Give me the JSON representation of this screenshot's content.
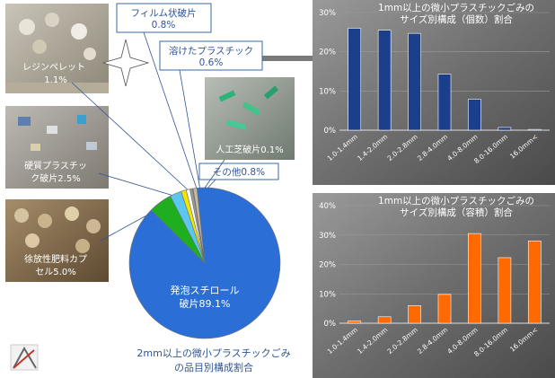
{
  "pie": {
    "caption_line1": "2mm以上の微小プラスチックごみ",
    "caption_line2": "の品目別構成割合",
    "slices": [
      {
        "name_line1": "発泡スチロール",
        "name_line2": "破片89.1%",
        "value": 89.1,
        "color": "#2b6fd6"
      },
      {
        "name_line1": "徐放性肥料カプ",
        "name_line2": "セル5.0%",
        "value": 5.0,
        "color": "#1fae1f"
      },
      {
        "name_line1": "硬質プラスチッ",
        "name_line2": "ク破片2.5%",
        "value": 2.5,
        "color": "#5cc5f0"
      },
      {
        "name_line1": "レジンペレット",
        "name_line2": "1.1%",
        "value": 1.1,
        "color": "#f2e600"
      },
      {
        "name_line1": "フィルム状破片",
        "name_line2": "0.8%",
        "value": 0.8,
        "color": "#ffffff"
      },
      {
        "name_line1": "溶けたプラスチック",
        "name_line2": "0.6%",
        "value": 0.6,
        "color": "#9a9a9a"
      },
      {
        "name_line1": "人工芝破片0.1%",
        "name_line2": "",
        "value": 0.1,
        "color": "#3a8f3a"
      },
      {
        "name_line1": "その他0.8%",
        "name_line2": "",
        "value": 0.8,
        "color": "#c8b89a"
      }
    ]
  },
  "chart_data": [
    {
      "type": "bar",
      "title_line1": "1mm以上の微小プラスチックごみの",
      "title_line2": "サイズ別構成（個数）割合",
      "categories": [
        "1.0-1.4mm",
        "1.4-2.0mm",
        "2.0-2.8mm",
        "2.8-4.0mm",
        "4.0-8.0mm",
        "8.0-16.0mm",
        "16.0mm<"
      ],
      "values": [
        26,
        25.5,
        24.7,
        14.3,
        7.9,
        0.7,
        0.2
      ],
      "yticks": [
        "0%",
        "10%",
        "20%",
        "30%"
      ],
      "ylim": [
        0,
        30
      ],
      "bar_color": "#1c3f8c"
    },
    {
      "type": "bar",
      "title_line1": "1mm以上の微小プラスチックごみの",
      "title_line2": "サイズ別構成（容積）割合",
      "categories": [
        "1.0-1.4mm",
        "1.4-2.0mm",
        "2.0-2.8mm",
        "2.8-4.0mm",
        "4.0-8.0mm",
        "8.0-16.0mm",
        "16.0mm<"
      ],
      "values": [
        0.8,
        2.2,
        6.0,
        9.8,
        30.5,
        22.3,
        28.0
      ],
      "yticks": [
        "0%",
        "10%",
        "20%",
        "30%",
        "40%"
      ],
      "ylim": [
        0,
        40
      ],
      "bar_color": "#ff6a00"
    }
  ]
}
